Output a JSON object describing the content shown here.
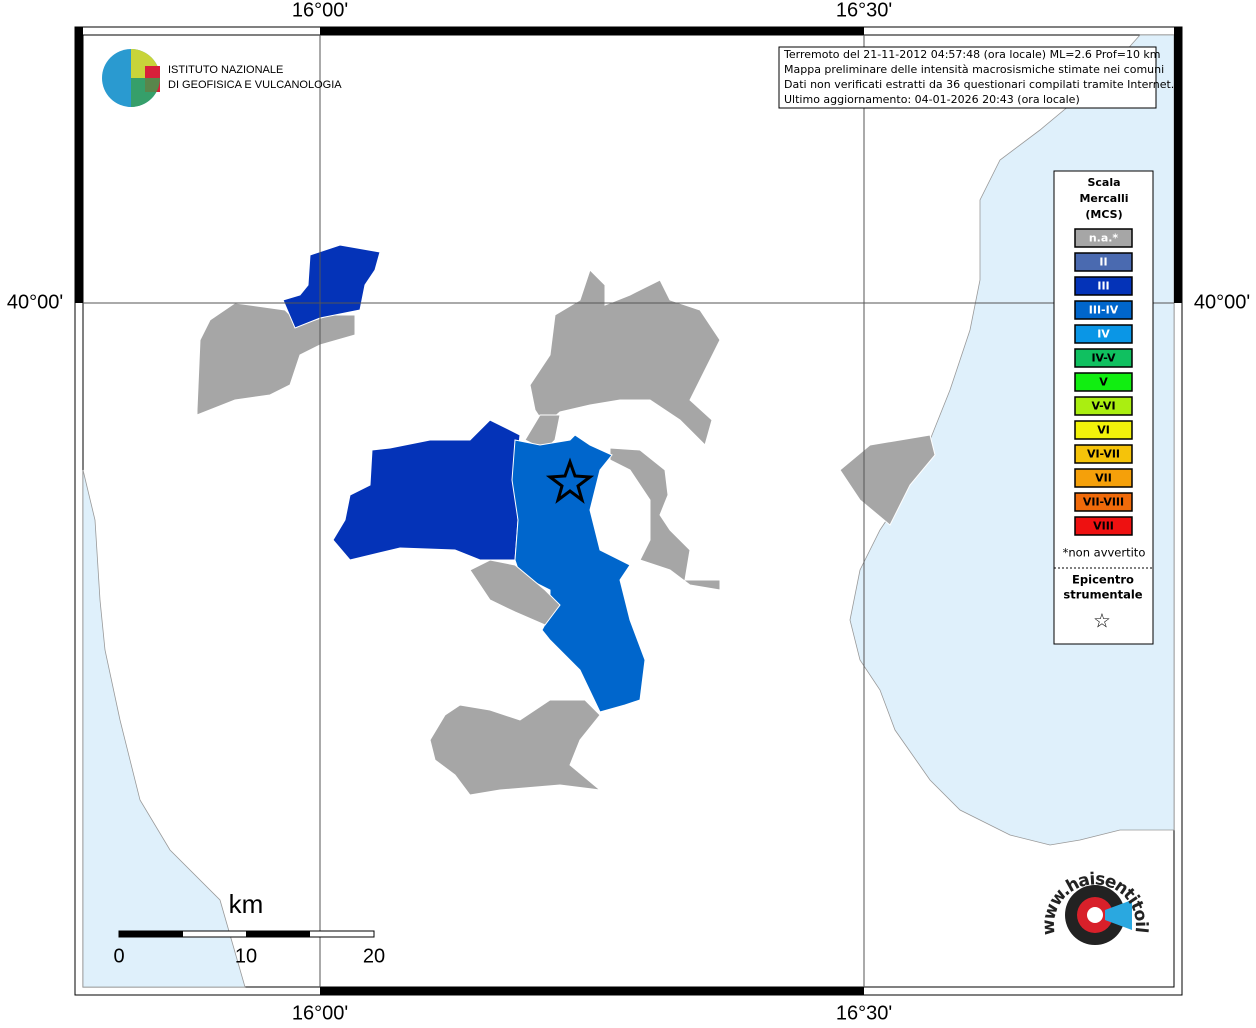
{
  "frame": {
    "lon_labels": [
      "16°00'",
      "16°30'"
    ],
    "lat_labels": [
      "40°00'"
    ]
  },
  "logo": {
    "line1": "ISTITUTO NAZIONALE",
    "line2": "DI GEOFISICA E VULCANOLOGIA"
  },
  "info": [
    "Terremoto del 21-11-2012 04:57:48 (ora locale) ML=2.6 Prof=10 km",
    "Mappa preliminare delle intensità macrosismiche stimate nei comuni",
    "Dati non verificati estratti da 36 questionari compilati tramite Internet.",
    "Ultimo aggiornamento: 04-01-2026 20:43 (ora locale)"
  ],
  "legend": {
    "title": [
      "Scala",
      "Mercalli",
      "(MCS)"
    ],
    "items": [
      {
        "label": "n.a.*",
        "color": "#a6a6a6"
      },
      {
        "label": "II",
        "color": "#4a6ab0"
      },
      {
        "label": "III",
        "color": "#0433b8"
      },
      {
        "label": "III-IV",
        "color": "#0066cc"
      },
      {
        "label": "IV",
        "color": "#0a96e6"
      },
      {
        "label": "IV-V",
        "color": "#10c060"
      },
      {
        "label": "V",
        "color": "#11ee11"
      },
      {
        "label": "V-VI",
        "color": "#aaee11"
      },
      {
        "label": "VI",
        "color": "#f2f20a"
      },
      {
        "label": "VI-VII",
        "color": "#f5c30a"
      },
      {
        "label": "VII",
        "color": "#f5a00a"
      },
      {
        "label": "VII-VIII",
        "color": "#f06a0a"
      },
      {
        "label": "VIII",
        "color": "#ee1111"
      }
    ],
    "note": "*non avvertito",
    "epicenter": [
      "Epicentro",
      "strumentale"
    ],
    "star": "☆"
  },
  "scale": {
    "unit": "km",
    "labels": [
      "0",
      "10",
      "20"
    ]
  },
  "badge": "www.haisentitoilterremoto.it"
}
